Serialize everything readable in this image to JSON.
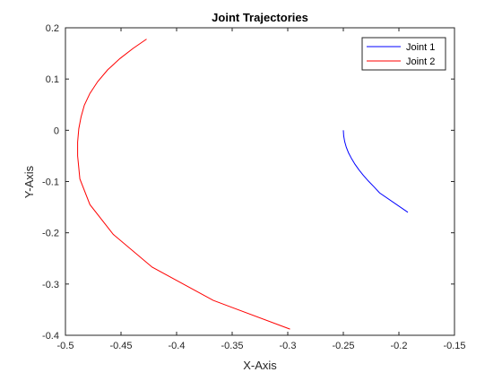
{
  "chart_data": {
    "type": "line",
    "title": "Joint Trajectories",
    "xlabel": "X-Axis",
    "ylabel": "Y-Axis",
    "xlim": [
      -0.5,
      -0.15
    ],
    "ylim": [
      -0.4,
      0.2
    ],
    "xticks": [
      -0.5,
      -0.45,
      -0.4,
      -0.35,
      -0.3,
      -0.25,
      -0.2,
      -0.15
    ],
    "xtick_labels": [
      "-0.5",
      "-0.45",
      "-0.4",
      "-0.35",
      "-0.3",
      "-0.25",
      "-0.2",
      "-0.15"
    ],
    "yticks": [
      -0.4,
      -0.3,
      -0.2,
      -0.1,
      0,
      0.1,
      0.2
    ],
    "ytick_labels": [
      "-0.4",
      "-0.3",
      "-0.2",
      "-0.1",
      "0",
      "0.1",
      "0.2"
    ],
    "grid": false,
    "legend_position": "top-right",
    "series": [
      {
        "name": "Joint 1",
        "color": "#0000ff",
        "x": [
          -0.25,
          -0.2497,
          -0.2488,
          -0.2473,
          -0.2453,
          -0.2427,
          -0.2396,
          -0.236,
          -0.232,
          -0.2275,
          -0.2226,
          -0.2174,
          -0.1919
        ],
        "y": [
          0.0,
          -0.011,
          -0.022,
          -0.033,
          -0.044,
          -0.055,
          -0.066,
          -0.077,
          -0.088,
          -0.099,
          -0.11,
          -0.122,
          -0.16
        ]
      },
      {
        "name": "Joint 2",
        "color": "#ff0000",
        "x": [
          -0.427,
          -0.439,
          -0.451,
          -0.462,
          -0.471,
          -0.478,
          -0.483,
          -0.486,
          -0.488,
          -0.489,
          -0.489,
          -0.487,
          -0.478,
          -0.457,
          -0.422,
          -0.367,
          -0.298
        ],
        "y": [
          0.178,
          0.16,
          0.14,
          0.118,
          0.095,
          0.072,
          0.049,
          0.026,
          0.003,
          -0.023,
          -0.05,
          -0.095,
          -0.145,
          -0.203,
          -0.267,
          -0.332,
          -0.388
        ]
      }
    ]
  }
}
